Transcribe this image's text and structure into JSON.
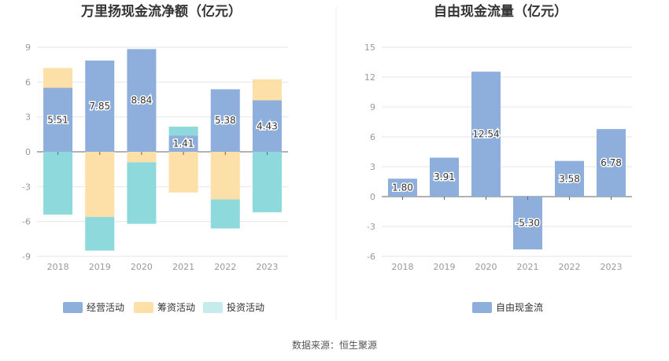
{
  "source_label": "数据来源：恒生聚源",
  "chart_data": [
    {
      "type": "bar",
      "stacked": true,
      "title": "万里扬现金流净额（亿元）",
      "categories": [
        "2018",
        "2019",
        "2020",
        "2021",
        "2022",
        "2023"
      ],
      "ylim": [
        -9,
        9
      ],
      "yticks": [
        -9,
        -6,
        -3,
        0,
        3,
        6,
        9
      ],
      "legend_position": "bottom",
      "series": [
        {
          "name": "经营活动",
          "color": "#8eaedc",
          "values": [
            5.51,
            7.85,
            8.84,
            1.41,
            5.38,
            4.43
          ],
          "labels": [
            "5.51",
            "7.85",
            "8.84",
            "1.41",
            "5.38",
            "4.43"
          ]
        },
        {
          "name": "筹资活动",
          "color": "#fddfa8",
          "values": [
            1.7,
            -5.6,
            -0.9,
            -3.5,
            -4.1,
            1.8
          ]
        },
        {
          "name": "投资活动",
          "color": "#a9e2e5",
          "values": [
            -5.4,
            -2.9,
            -5.3,
            0.75,
            -2.5,
            -5.2
          ]
        }
      ]
    },
    {
      "type": "bar",
      "title": "自由现金流量（亿元）",
      "categories": [
        "2018",
        "2019",
        "2020",
        "2021",
        "2022",
        "2023"
      ],
      "ylim": [
        -6,
        15
      ],
      "yticks": [
        -6,
        -3,
        0,
        3,
        6,
        9,
        12,
        15
      ],
      "legend_position": "bottom",
      "series": [
        {
          "name": "自由现金流",
          "color": "#8eaedc",
          "values": [
            1.8,
            3.91,
            12.54,
            -5.3,
            3.58,
            6.78
          ],
          "labels": [
            "1.80",
            "3.91",
            "12.54",
            "-5.30",
            "3.58",
            "6.78"
          ]
        }
      ]
    }
  ]
}
